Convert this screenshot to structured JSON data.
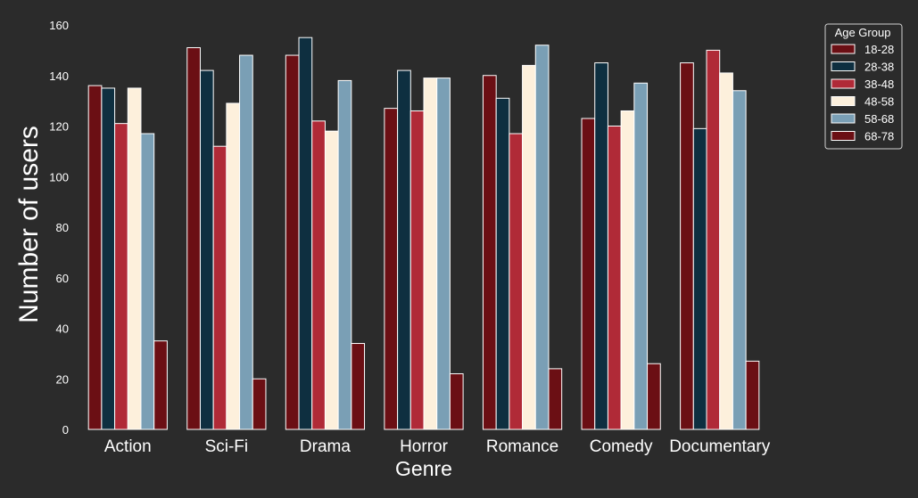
{
  "chart_data": {
    "type": "bar",
    "title": "",
    "xlabel": "Genre",
    "ylabel": "Number of users",
    "ylim": [
      0,
      160
    ],
    "yticks": [
      0,
      20,
      40,
      60,
      80,
      100,
      120,
      140,
      160
    ],
    "grid": false,
    "legend": {
      "title": "Age Group",
      "placement": "top-right"
    },
    "categories": [
      "Action",
      "Sci-Fi",
      "Drama",
      "Horror",
      "Romance",
      "Comedy",
      "Documentary"
    ],
    "series": [
      {
        "name": "18-28",
        "color": "#6b0f14",
        "values": [
          136,
          151,
          148,
          127,
          140,
          123,
          145
        ]
      },
      {
        "name": "28-38",
        "color": "#0e2f40",
        "values": [
          135,
          142,
          155,
          142,
          131,
          145,
          119
        ]
      },
      {
        "name": "38-48",
        "color": "#b02a37",
        "values": [
          121,
          112,
          122,
          126,
          117,
          120,
          150
        ]
      },
      {
        "name": "48-58",
        "color": "#fdf0dc",
        "values": [
          135,
          129,
          118,
          139,
          144,
          126,
          141
        ]
      },
      {
        "name": "58-68",
        "color": "#7a9fb5",
        "values": [
          117,
          148,
          138,
          139,
          152,
          137,
          134
        ]
      },
      {
        "name": "68-78",
        "color": "#6b0f14",
        "values": [
          35,
          20,
          34,
          22,
          24,
          26,
          27
        ]
      }
    ]
  }
}
